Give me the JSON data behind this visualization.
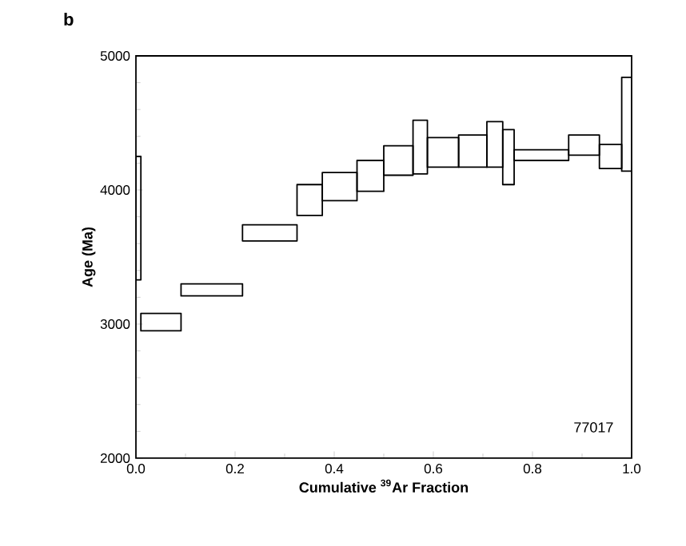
{
  "chart_data": {
    "type": "histogram",
    "title": "b",
    "xlabel": "Cumulative $^{39}$Ar Fraction",
    "ylabel": "Age (Ma)",
    "annotations": [
      "77017"
    ],
    "bins": [
      0,
      0.01,
      0.091,
      0.215,
      0.325,
      0.376,
      0.446,
      0.5,
      0.559,
      0.588,
      0.651,
      0.708,
      0.74,
      0.763,
      0.873,
      0.935,
      0.98,
      1.0
    ],
    "base": [
      3330,
      2950,
      3210,
      3620,
      3810,
      3920,
      3990,
      4110,
      4120,
      4170,
      4170,
      4170,
      4040,
      4220,
      4260,
      4160,
      4140
    ],
    "values": [
      920,
      130,
      90,
      120,
      230,
      210,
      230,
      220,
      400,
      220,
      240,
      340,
      410,
      80,
      150,
      180,
      700
    ],
    "color": "#000000",
    "xlim": [
      0,
      1.0
    ],
    "xticks": [
      {
        "value": 0,
        "label": "0.0"
      },
      0.2,
      0.4,
      0.6,
      0.8,
      {
        "value": 1.0,
        "label": "1.0"
      }
    ],
    "ylim": [
      2000,
      5000
    ],
    "yticks": [
      2000,
      3000,
      4000,
      5000
    ]
  }
}
